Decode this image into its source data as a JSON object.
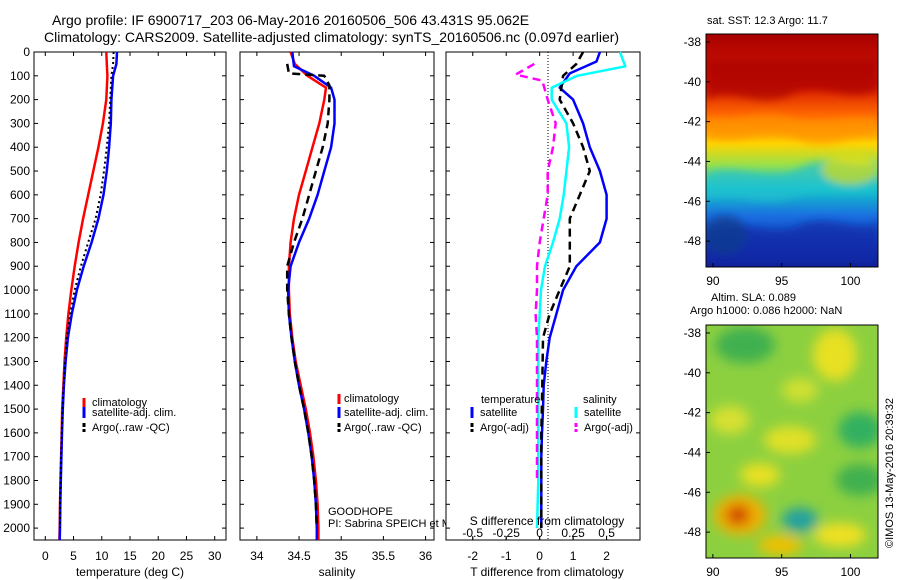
{
  "title_line1": "Argo profile: IF 6900717_203 06-May-2016 20160506_506 43.431S 95.062E",
  "title_line2": "Climatology: CARS2009. Satellite-adjusted climatology: synTS_20160506.nc (0.097d earlier)",
  "colors": {
    "climatology": "#ff0000",
    "satellite": "#0000ff",
    "argo": "#000000",
    "sal_satellite": "#00ffff",
    "sal_argo": "#ff00ff"
  },
  "chart_data": [
    {
      "type": "line",
      "name": "temperature",
      "xlabel": "temperature (deg C)",
      "xlim": [
        -2,
        32
      ],
      "ylim": [
        2050,
        0
      ],
      "xticks": [
        "0",
        "5",
        "10",
        "15",
        "20",
        "25",
        "30"
      ],
      "yticks": [
        "0",
        "100",
        "200",
        "300",
        "400",
        "500",
        "600",
        "700",
        "800",
        "900",
        "1000",
        "1100",
        "1200",
        "1300",
        "1400",
        "1500",
        "1600",
        "1700",
        "1800",
        "1900",
        "2000"
      ],
      "legend": [
        "climatology",
        "satellite-adj. clim.",
        "Argo(..raw -QC)"
      ],
      "legend_position": "bottom-right",
      "series": [
        {
          "name": "climatology",
          "color": "#ff0000",
          "style": "solid",
          "points": [
            [
              10.8,
              0
            ],
            [
              10.9,
              50
            ],
            [
              11.0,
              100
            ],
            [
              10.8,
              200
            ],
            [
              10.2,
              300
            ],
            [
              9.4,
              400
            ],
            [
              8.5,
              500
            ],
            [
              7.6,
              600
            ],
            [
              6.7,
              700
            ],
            [
              5.9,
              800
            ],
            [
              5.2,
              900
            ],
            [
              4.6,
              1000
            ],
            [
              4.1,
              1100
            ],
            [
              3.7,
              1200
            ],
            [
              3.4,
              1300
            ],
            [
              3.2,
              1400
            ],
            [
              3.0,
              1500
            ],
            [
              2.9,
              1600
            ],
            [
              2.8,
              1700
            ],
            [
              2.7,
              1800
            ],
            [
              2.6,
              1900
            ],
            [
              2.55,
              2000
            ],
            [
              2.5,
              2050
            ]
          ]
        },
        {
          "name": "satellite-adj. clim.",
          "color": "#0000ff",
          "style": "solid",
          "points": [
            [
              12.7,
              0
            ],
            [
              12.6,
              50
            ],
            [
              12.0,
              100
            ],
            [
              11.7,
              200
            ],
            [
              11.6,
              300
            ],
            [
              11.3,
              400
            ],
            [
              10.9,
              500
            ],
            [
              10.3,
              600
            ],
            [
              9.4,
              700
            ],
            [
              8.2,
              800
            ],
            [
              6.8,
              900
            ],
            [
              5.6,
              1000
            ],
            [
              4.7,
              1100
            ],
            [
              4.0,
              1200
            ],
            [
              3.6,
              1300
            ],
            [
              3.3,
              1400
            ],
            [
              3.1,
              1500
            ],
            [
              2.95,
              1600
            ],
            [
              2.85,
              1700
            ],
            [
              2.75,
              1800
            ],
            [
              2.65,
              1900
            ],
            [
              2.6,
              2000
            ],
            [
              2.55,
              2050
            ]
          ]
        },
        {
          "name": "Argo(..raw -QC)",
          "color": "#000000",
          "style": "dotted",
          "points": [
            [
              12.1,
              0
            ],
            [
              12.0,
              50
            ],
            [
              11.7,
              100
            ],
            [
              11.5,
              200
            ],
            [
              11.3,
              300
            ],
            [
              10.9,
              400
            ],
            [
              10.4,
              500
            ],
            [
              9.8,
              600
            ],
            [
              8.9,
              700
            ],
            [
              7.6,
              800
            ],
            [
              6.3,
              900
            ],
            [
              5.2,
              1000
            ],
            [
              4.4,
              1100
            ],
            [
              3.8,
              1200
            ],
            [
              3.5,
              1300
            ],
            [
              3.25,
              1400
            ],
            [
              3.05,
              1500
            ],
            [
              2.9,
              1600
            ],
            [
              2.8,
              1700
            ],
            [
              2.7,
              1800
            ],
            [
              2.62,
              1900
            ],
            [
              2.58,
              2000
            ]
          ]
        }
      ]
    },
    {
      "type": "line",
      "name": "salinity",
      "xlabel": "salinity",
      "xlim": [
        33.8,
        36.1
      ],
      "ylim": [
        2050,
        0
      ],
      "xticks": [
        "34",
        "34.5",
        "35",
        "35.5",
        "36"
      ],
      "legend": [
        "climatology",
        "satellite-adj. clim.",
        "Argo(..raw -QC)"
      ],
      "legend_position": "bottom-right",
      "annotation": [
        "GOODHOPE",
        "PI: Sabrina SPEICH et Michel ARHAN"
      ],
      "series": [
        {
          "name": "climatology",
          "color": "#ff0000",
          "style": "solid",
          "points": [
            [
              34.4,
              0
            ],
            [
              34.45,
              50
            ],
            [
              34.6,
              100
            ],
            [
              34.82,
              150
            ],
            [
              34.8,
              200
            ],
            [
              34.74,
              300
            ],
            [
              34.66,
              400
            ],
            [
              34.58,
              500
            ],
            [
              34.5,
              600
            ],
            [
              34.44,
              700
            ],
            [
              34.4,
              800
            ],
            [
              34.38,
              900
            ],
            [
              34.38,
              1000
            ],
            [
              34.39,
              1100
            ],
            [
              34.42,
              1200
            ],
            [
              34.46,
              1300
            ],
            [
              34.52,
              1400
            ],
            [
              34.58,
              1500
            ],
            [
              34.63,
              1600
            ],
            [
              34.67,
              1700
            ],
            [
              34.7,
              1800
            ],
            [
              34.72,
              1900
            ],
            [
              34.73,
              2000
            ],
            [
              34.73,
              2050
            ]
          ]
        },
        {
          "name": "satellite-adj. clim.",
          "color": "#0000ff",
          "style": "solid",
          "points": [
            [
              34.42,
              0
            ],
            [
              34.44,
              60
            ],
            [
              34.68,
              100
            ],
            [
              34.88,
              150
            ],
            [
              34.92,
              200
            ],
            [
              34.92,
              300
            ],
            [
              34.88,
              400
            ],
            [
              34.8,
              500
            ],
            [
              34.72,
              600
            ],
            [
              34.62,
              700
            ],
            [
              34.5,
              800
            ],
            [
              34.4,
              900
            ],
            [
              34.37,
              1000
            ],
            [
              34.38,
              1100
            ],
            [
              34.41,
              1200
            ],
            [
              34.45,
              1300
            ],
            [
              34.5,
              1400
            ],
            [
              34.56,
              1500
            ],
            [
              34.61,
              1600
            ],
            [
              34.65,
              1700
            ],
            [
              34.68,
              1800
            ],
            [
              34.7,
              1900
            ],
            [
              34.71,
              2000
            ],
            [
              34.71,
              2050
            ]
          ]
        },
        {
          "name": "Argo(..raw -QC)",
          "color": "#000000",
          "style": "dashed",
          "points": [
            [
              34.36,
              50
            ],
            [
              34.38,
              90
            ],
            [
              34.8,
              100
            ],
            [
              34.86,
              140
            ],
            [
              34.86,
              200
            ],
            [
              34.84,
              300
            ],
            [
              34.78,
              400
            ],
            [
              34.7,
              500
            ],
            [
              34.62,
              600
            ],
            [
              34.54,
              700
            ],
            [
              34.44,
              800
            ],
            [
              34.36,
              900
            ],
            [
              34.36,
              1000
            ],
            [
              34.38,
              1100
            ],
            [
              34.41,
              1200
            ],
            [
              34.45,
              1300
            ],
            [
              34.5,
              1400
            ],
            [
              34.56,
              1500
            ],
            [
              34.61,
              1600
            ],
            [
              34.65,
              1700
            ],
            [
              34.68,
              1800
            ],
            [
              34.7,
              1900
            ],
            [
              34.71,
              2000
            ]
          ]
        }
      ]
    },
    {
      "type": "line",
      "name": "difference",
      "xlabel": "T difference from climatology",
      "xlabel_top": "S difference from climatology",
      "xlim": [
        -2.8,
        3.0
      ],
      "ylim": [
        2050,
        0
      ],
      "xticks": [
        "-2",
        "-1",
        "0",
        "1",
        "2"
      ],
      "xticks_sal": [
        "-0.5",
        "-0.25",
        "0",
        "0.25",
        "0.5"
      ],
      "legend_temperature": {
        "title": "temperature",
        "items": [
          "satellite",
          "Argo(-adj)"
        ]
      },
      "legend_salinity": {
        "title": "salinity",
        "items": [
          "satellite",
          "Argo(-adj)"
        ]
      },
      "series": [
        {
          "name": "temperature satellite",
          "color": "#0000ff",
          "style": "solid",
          "points": [
            [
              1.8,
              0
            ],
            [
              1.7,
              40
            ],
            [
              0.9,
              90
            ],
            [
              0.6,
              150
            ],
            [
              1.0,
              200
            ],
            [
              1.3,
              300
            ],
            [
              1.5,
              400
            ],
            [
              1.8,
              500
            ],
            [
              2.0,
              600
            ],
            [
              2.0,
              700
            ],
            [
              1.8,
              800
            ],
            [
              1.1,
              900
            ],
            [
              0.7,
              1000
            ],
            [
              0.5,
              1100
            ],
            [
              0.3,
              1200
            ],
            [
              0.2,
              1300
            ],
            [
              0.12,
              1400
            ],
            [
              0.1,
              1500
            ],
            [
              0.07,
              1600
            ],
            [
              0.05,
              1700
            ],
            [
              0.05,
              1800
            ],
            [
              0.05,
              1900
            ],
            [
              0.05,
              2000
            ]
          ]
        },
        {
          "name": "temperature Argo(-adj)",
          "color": "#000000",
          "style": "dashed",
          "points": [
            [
              1.3,
              0
            ],
            [
              1.1,
              50
            ],
            [
              0.7,
              100
            ],
            [
              0.6,
              200
            ],
            [
              1.0,
              300
            ],
            [
              1.3,
              400
            ],
            [
              1.5,
              500
            ],
            [
              1.2,
              600
            ],
            [
              0.9,
              700
            ],
            [
              0.9,
              800
            ],
            [
              0.9,
              900
            ],
            [
              0.6,
              1000
            ],
            [
              0.3,
              1100
            ],
            [
              0.1,
              1200
            ],
            [
              0.08,
              1400
            ],
            [
              0.05,
              1600
            ],
            [
              0.05,
              1800
            ],
            [
              0.05,
              2000
            ]
          ]
        },
        {
          "name": "salinity satellite",
          "color": "#00ffff",
          "style": "solid",
          "points": [
            [
              0.6,
              0
            ],
            [
              0.64,
              60
            ],
            [
              0.28,
              100
            ],
            [
              0.09,
              150
            ],
            [
              0.09,
              200
            ],
            [
              0.2,
              300
            ],
            [
              0.22,
              400
            ],
            [
              0.2,
              500
            ],
            [
              0.18,
              600
            ],
            [
              0.15,
              700
            ],
            [
              0.1,
              800
            ],
            [
              0.04,
              900
            ],
            [
              0.01,
              1000
            ],
            [
              0.0,
              1100
            ],
            [
              -0.01,
              1200
            ],
            [
              -0.01,
              1400
            ],
            [
              -0.01,
              1600
            ],
            [
              -0.01,
              1800
            ],
            [
              -0.02,
              2000
            ]
          ]
        },
        {
          "name": "salinity Argo(-adj)",
          "color": "#ff00ff",
          "style": "dashed",
          "points": [
            [
              -0.04,
              50
            ],
            [
              -0.18,
              95
            ],
            [
              0.02,
              120
            ],
            [
              0.06,
              200
            ],
            [
              0.12,
              300
            ],
            [
              0.1,
              400
            ],
            [
              0.06,
              500
            ],
            [
              0.06,
              600
            ],
            [
              0.03,
              700
            ],
            [
              0.0,
              800
            ],
            [
              -0.02,
              900
            ],
            [
              -0.02,
              1000
            ],
            [
              -0.03,
              1100
            ],
            [
              -0.02,
              1200
            ],
            [
              -0.02,
              1400
            ],
            [
              -0.02,
              1600
            ],
            [
              -0.02,
              1800
            ]
          ]
        }
      ]
    },
    {
      "type": "heatmap",
      "name": "sst map",
      "title": "sat. SST: 12.3 Argo: 11.7",
      "xticks": [
        "90",
        "95",
        "100"
      ],
      "yticks": [
        "-38",
        "-40",
        "-42",
        "-44",
        "-46",
        "-48"
      ],
      "xlim": [
        89.5,
        102
      ],
      "ylim": [
        -49.3,
        -37.6
      ]
    },
    {
      "type": "heatmap",
      "name": "sla map",
      "title_line1": "Altim. SLA: 0.089",
      "title_line2": "Argo h1000: 0.086 h2000: NaN",
      "xticks": [
        "90",
        "95",
        "100"
      ],
      "yticks": [
        "-38",
        "-40",
        "-42",
        "-44",
        "-46",
        "-48"
      ],
      "xlim": [
        89.5,
        102
      ],
      "ylim": [
        -49.3,
        -37.6
      ]
    }
  ],
  "credit": "©IMOS 13-May-2016 20:39:32"
}
